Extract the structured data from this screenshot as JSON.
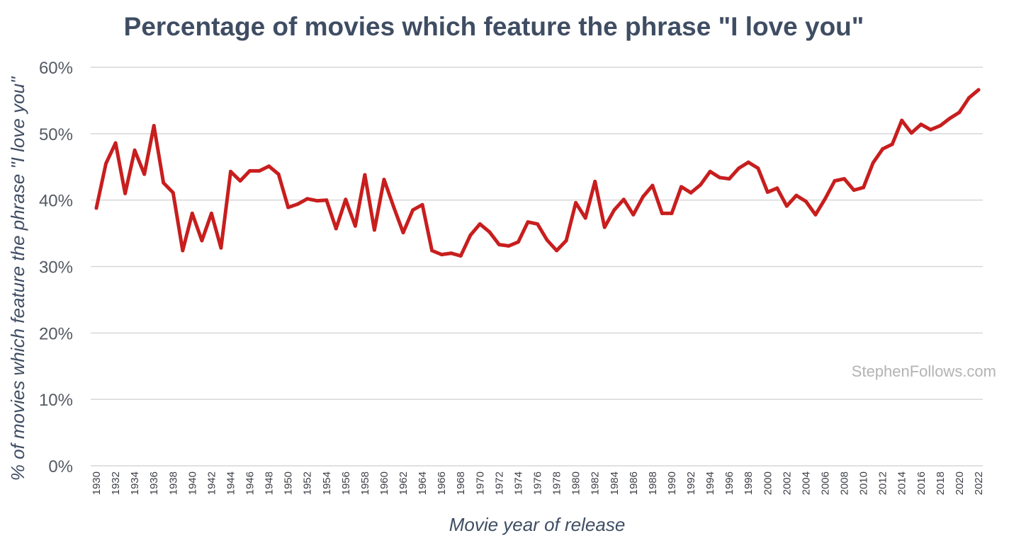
{
  "chart_data": {
    "type": "line",
    "title": "Percentage of movies which feature the phrase \"I love you\"",
    "xlabel": "Movie year of release",
    "ylabel": "% of movies which feature the phrase \"I love you\"",
    "watermark": "StephenFollows.com",
    "ylim": [
      0,
      60
    ],
    "yticks": [
      0,
      10,
      20,
      30,
      40,
      50,
      60
    ],
    "ytick_labels": [
      "0%",
      "10%",
      "20%",
      "30%",
      "40%",
      "50%",
      "60%"
    ],
    "grid": true,
    "line_color": "#c81e1e",
    "x": [
      1930,
      1931,
      1932,
      1933,
      1934,
      1935,
      1936,
      1937,
      1938,
      1939,
      1940,
      1941,
      1942,
      1943,
      1944,
      1945,
      1946,
      1947,
      1948,
      1949,
      1950,
      1951,
      1952,
      1953,
      1954,
      1955,
      1956,
      1957,
      1958,
      1959,
      1960,
      1961,
      1962,
      1963,
      1964,
      1965,
      1966,
      1967,
      1968,
      1969,
      1970,
      1971,
      1972,
      1973,
      1974,
      1975,
      1976,
      1977,
      1978,
      1979,
      1980,
      1981,
      1982,
      1983,
      1984,
      1985,
      1986,
      1987,
      1988,
      1989,
      1990,
      1991,
      1992,
      1993,
      1994,
      1995,
      1996,
      1997,
      1998,
      1999,
      2000,
      2001,
      2002,
      2003,
      2004,
      2005,
      2006,
      2007,
      2008,
      2009,
      2010,
      2011,
      2012,
      2013,
      2014,
      2015,
      2016,
      2017,
      2018,
      2019,
      2020,
      2021,
      2022
    ],
    "xtick_labels": [
      "1930",
      "1932",
      "1934",
      "1936",
      "1938",
      "1940",
      "1942",
      "1944",
      "1946",
      "1948",
      "1950",
      "1952",
      "1954",
      "1956",
      "1958",
      "1960",
      "1962",
      "1964",
      "1966",
      "1968",
      "1970",
      "1972",
      "1974",
      "1976",
      "1978",
      "1980",
      "1982",
      "1984",
      "1986",
      "1988",
      "1990",
      "1992",
      "1994",
      "1996",
      "1998",
      "2000",
      "2002",
      "2004",
      "2006",
      "2008",
      "2010",
      "2012",
      "2014",
      "2016",
      "2018",
      "2020",
      "2022"
    ],
    "series": [
      {
        "values": [
          38.8,
          45.5,
          48.6,
          41.0,
          47.5,
          43.9,
          51.2,
          42.6,
          41.1,
          32.4,
          38.0,
          33.9,
          38.0,
          32.8,
          44.3,
          42.9,
          44.4,
          44.4,
          45.1,
          43.9,
          38.9,
          39.4,
          40.2,
          39.9,
          40.0,
          35.7,
          40.1,
          36.1,
          43.8,
          35.5,
          43.1,
          39.0,
          35.1,
          38.5,
          39.3,
          32.4,
          31.8,
          32.0,
          31.6,
          34.7,
          36.4,
          35.2,
          33.3,
          33.1,
          33.7,
          36.7,
          36.4,
          34.0,
          32.4,
          33.9,
          39.6,
          37.3,
          42.8,
          35.9,
          38.5,
          40.1,
          37.8,
          40.5,
          42.2,
          38.0,
          38.0,
          42.0,
          41.1,
          42.3,
          44.3,
          43.4,
          43.2,
          44.8,
          45.7,
          44.8,
          41.2,
          41.8,
          39.1,
          40.7,
          39.8,
          37.8,
          40.2,
          42.9,
          43.2,
          41.5,
          41.9,
          45.6,
          47.7,
          48.4,
          52.0,
          50.1,
          51.4,
          50.6,
          51.2,
          52.3,
          53.2,
          55.4,
          56.6
        ]
      }
    ]
  }
}
